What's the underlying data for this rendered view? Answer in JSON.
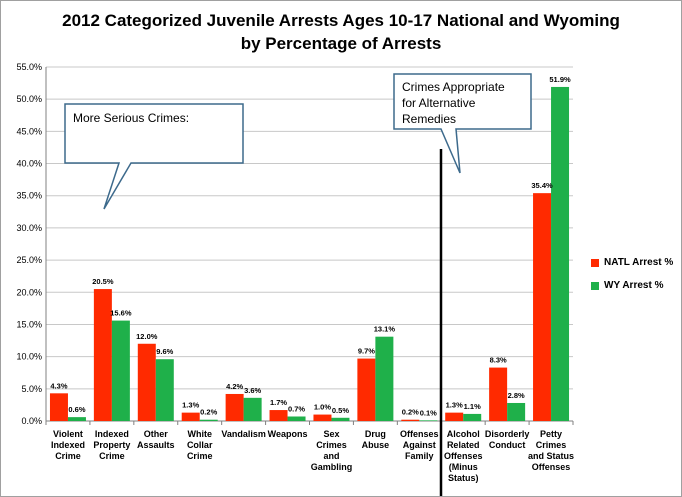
{
  "title_line1": "2012 Categorized Juvenile Arrests Ages 10-17 National and Wyoming",
  "title_line2": "by Percentage of Arrests",
  "callouts": {
    "serious": "More Serious Crimes:",
    "alternative": [
      "Crimes Appropriate",
      "for Alternative",
      "Remedies"
    ]
  },
  "legend": {
    "natl": "NATL Arrest %",
    "wy": "WY Arrest %"
  },
  "colors": {
    "natl": "#ff2a00",
    "wy": "#1fb04a"
  },
  "chart_data": {
    "type": "bar",
    "categories": [
      [
        "Violent",
        "Indexed",
        "Crime"
      ],
      [
        "Indexed",
        "Property",
        "Crime"
      ],
      [
        "Other",
        "Assaults"
      ],
      [
        "White",
        "Collar",
        "Crime"
      ],
      [
        "Vandalism"
      ],
      [
        "Weapons"
      ],
      [
        "Sex",
        "Crimes",
        "and",
        "Gambling"
      ],
      [
        "Drug",
        "Abuse"
      ],
      [
        "Offenses",
        "Against",
        "Family"
      ],
      [
        "Alcohol",
        "Related",
        "Offenses",
        "(Minus",
        "Status)"
      ],
      [
        "Disorderly",
        "Conduct"
      ],
      [
        "Petty",
        "Crimes",
        "and Status",
        "Offenses"
      ]
    ],
    "series": [
      {
        "name": "NATL Arrest %",
        "values": [
          4.3,
          20.5,
          12.0,
          1.3,
          4.2,
          1.7,
          1.0,
          9.7,
          0.2,
          1.3,
          8.3,
          35.4
        ],
        "labels": [
          "4.3%",
          "20.5%",
          "12.0%",
          "1.3%",
          "4.2%",
          "1.7%",
          "1.0%",
          "9.7%",
          "0.2%",
          "1.3%",
          "8.3%",
          "35.4%"
        ]
      },
      {
        "name": "WY Arrest %",
        "values": [
          0.6,
          15.6,
          9.6,
          0.2,
          3.6,
          0.7,
          0.5,
          13.1,
          0.1,
          1.1,
          2.8,
          51.9
        ],
        "labels": [
          "0.6%",
          "15.6%",
          "9.6%",
          "0.2%",
          "3.6%",
          "0.7%",
          "0.5%",
          "13.1%",
          "0.1%",
          "1.1%",
          "2.8%",
          "51.9%"
        ]
      }
    ],
    "ylim": [
      0,
      55
    ],
    "yticks": [
      "0.0%",
      "5.0%",
      "10.0%",
      "15.0%",
      "20.0%",
      "25.0%",
      "30.0%",
      "35.0%",
      "40.0%",
      "45.0%",
      "50.0%",
      "55.0%"
    ],
    "grid": true,
    "legend_position": "right"
  }
}
